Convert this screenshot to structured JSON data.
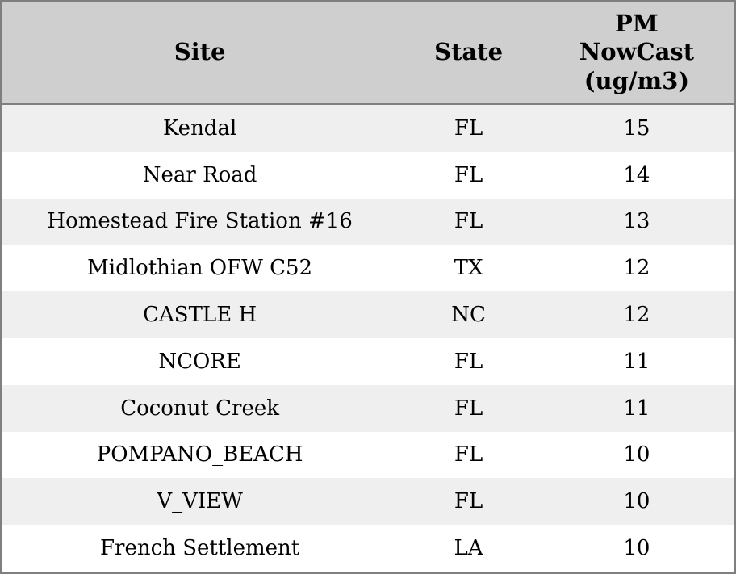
{
  "chart_data": {
    "type": "table",
    "columns": [
      "Site",
      "State",
      "PM NowCast (ug/m3)"
    ],
    "rows": [
      {
        "site": "Kendal",
        "state": "FL",
        "pm_nowcast": 15
      },
      {
        "site": "Near Road",
        "state": "FL",
        "pm_nowcast": 14
      },
      {
        "site": "Homestead Fire Station #16",
        "state": "FL",
        "pm_nowcast": 13
      },
      {
        "site": "Midlothian OFW C52",
        "state": "TX",
        "pm_nowcast": 12
      },
      {
        "site": "CASTLE H",
        "state": "NC",
        "pm_nowcast": 12
      },
      {
        "site": "NCORE",
        "state": "FL",
        "pm_nowcast": 11
      },
      {
        "site": "Coconut Creek",
        "state": "FL",
        "pm_nowcast": 11
      },
      {
        "site": "POMPANO_BEACH",
        "state": "FL",
        "pm_nowcast": 10
      },
      {
        "site": "V_VIEW",
        "state": "FL",
        "pm_nowcast": 10
      },
      {
        "site": "French Settlement",
        "state": "LA",
        "pm_nowcast": 10
      }
    ]
  },
  "colors": {
    "border": "#7f7f7f",
    "header_bg": "#cfcfcf",
    "row_alt_bg": "#efefef",
    "row_bg": "#ffffff",
    "text": "#000000"
  }
}
